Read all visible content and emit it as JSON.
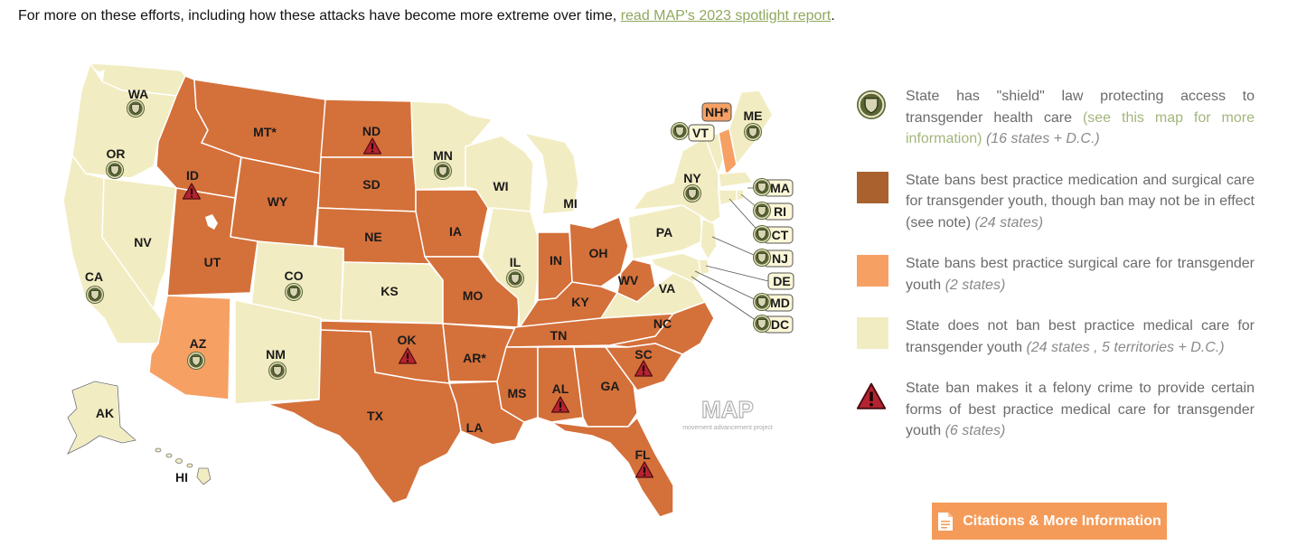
{
  "intro": {
    "text": "For more on these efforts, including how these attacks have become more extreme over time, ",
    "link": "read MAP's 2023 spotlight report",
    "after": "."
  },
  "colors": {
    "full_ban": "#d4703a",
    "surgical_ban": "#f6a064",
    "no_ban": "#f2ecc2",
    "shield": "#5b6634",
    "felony": "#b52330",
    "button": "#f49b5a"
  },
  "map": {
    "states": [
      {
        "abbr": "WA",
        "category": "no_ban",
        "shield": true,
        "felony": false
      },
      {
        "abbr": "OR",
        "category": "no_ban",
        "shield": true,
        "felony": false
      },
      {
        "abbr": "CA",
        "category": "no_ban",
        "shield": true,
        "felony": false
      },
      {
        "abbr": "NV",
        "category": "no_ban",
        "shield": false,
        "felony": false
      },
      {
        "abbr": "ID",
        "category": "full_ban",
        "shield": false,
        "felony": true
      },
      {
        "abbr": "MT*",
        "category": "full_ban",
        "shield": false,
        "felony": false
      },
      {
        "abbr": "WY",
        "category": "full_ban",
        "shield": false,
        "felony": false
      },
      {
        "abbr": "UT",
        "category": "full_ban",
        "shield": false,
        "felony": false
      },
      {
        "abbr": "AZ",
        "category": "surgical_ban",
        "shield": true,
        "felony": false
      },
      {
        "abbr": "CO",
        "category": "no_ban",
        "shield": true,
        "felony": false
      },
      {
        "abbr": "NM",
        "category": "no_ban",
        "shield": true,
        "felony": false
      },
      {
        "abbr": "ND",
        "category": "full_ban",
        "shield": false,
        "felony": true
      },
      {
        "abbr": "SD",
        "category": "full_ban",
        "shield": false,
        "felony": false
      },
      {
        "abbr": "NE",
        "category": "full_ban",
        "shield": false,
        "felony": false
      },
      {
        "abbr": "KS",
        "category": "no_ban",
        "shield": false,
        "felony": false
      },
      {
        "abbr": "OK",
        "category": "full_ban",
        "shield": false,
        "felony": true
      },
      {
        "abbr": "TX",
        "category": "full_ban",
        "shield": false,
        "felony": false
      },
      {
        "abbr": "MN",
        "category": "no_ban",
        "shield": true,
        "felony": false
      },
      {
        "abbr": "IA",
        "category": "full_ban",
        "shield": false,
        "felony": false
      },
      {
        "abbr": "MO",
        "category": "full_ban",
        "shield": false,
        "felony": false
      },
      {
        "abbr": "AR*",
        "category": "full_ban",
        "shield": false,
        "felony": false
      },
      {
        "abbr": "LA",
        "category": "full_ban",
        "shield": false,
        "felony": false
      },
      {
        "abbr": "WI",
        "category": "no_ban",
        "shield": false,
        "felony": false
      },
      {
        "abbr": "IL",
        "category": "no_ban",
        "shield": true,
        "felony": false
      },
      {
        "abbr": "MI",
        "category": "no_ban",
        "shield": false,
        "felony": false
      },
      {
        "abbr": "IN",
        "category": "full_ban",
        "shield": false,
        "felony": false
      },
      {
        "abbr": "OH",
        "category": "full_ban",
        "shield": false,
        "felony": false
      },
      {
        "abbr": "KY",
        "category": "full_ban",
        "shield": false,
        "felony": false
      },
      {
        "abbr": "TN",
        "category": "full_ban",
        "shield": false,
        "felony": false
      },
      {
        "abbr": "MS",
        "category": "full_ban",
        "shield": false,
        "felony": false
      },
      {
        "abbr": "AL",
        "category": "full_ban",
        "shield": false,
        "felony": true
      },
      {
        "abbr": "GA",
        "category": "full_ban",
        "shield": false,
        "felony": false
      },
      {
        "abbr": "FL",
        "category": "full_ban",
        "shield": false,
        "felony": true
      },
      {
        "abbr": "SC",
        "category": "full_ban",
        "shield": false,
        "felony": true
      },
      {
        "abbr": "NC",
        "category": "full_ban",
        "shield": false,
        "felony": false
      },
      {
        "abbr": "WV",
        "category": "full_ban",
        "shield": false,
        "felony": false
      },
      {
        "abbr": "VA",
        "category": "no_ban",
        "shield": false,
        "felony": false
      },
      {
        "abbr": "PA",
        "category": "no_ban",
        "shield": false,
        "felony": false
      },
      {
        "abbr": "NY",
        "category": "no_ban",
        "shield": true,
        "felony": false
      },
      {
        "abbr": "VT",
        "category": "no_ban",
        "shield": true,
        "felony": false
      },
      {
        "abbr": "NH*",
        "category": "surgical_ban",
        "shield": false,
        "felony": false
      },
      {
        "abbr": "ME",
        "category": "no_ban",
        "shield": true,
        "felony": false
      },
      {
        "abbr": "MA",
        "category": "no_ban",
        "shield": true,
        "felony": false
      },
      {
        "abbr": "RI",
        "category": "no_ban",
        "shield": true,
        "felony": false
      },
      {
        "abbr": "CT",
        "category": "no_ban",
        "shield": true,
        "felony": false
      },
      {
        "abbr": "NJ",
        "category": "no_ban",
        "shield": true,
        "felony": false
      },
      {
        "abbr": "DE",
        "category": "no_ban",
        "shield": false,
        "felony": false
      },
      {
        "abbr": "MD",
        "category": "no_ban",
        "shield": true,
        "felony": false
      },
      {
        "abbr": "DC",
        "category": "no_ban",
        "shield": true,
        "felony": false
      },
      {
        "abbr": "AK",
        "category": "no_ban",
        "shield": false,
        "felony": false
      },
      {
        "abbr": "HI",
        "category": "no_ban",
        "shield": false,
        "felony": false
      }
    ],
    "watermark": {
      "logo": "MAP",
      "tagline": "movement advancement project"
    }
  },
  "legend": [
    {
      "icon": "shield-icon",
      "text": "State has \"shield\" law protecting access to transgender health care",
      "link": "(see this map for more information)",
      "count": "(16 states + D.C.)"
    },
    {
      "icon": "full-ban-swatch",
      "text": "State bans best practice medication and surgical care for transgender youth, though ban may not be in effect (see note)",
      "link": "",
      "count": "(24 states)"
    },
    {
      "icon": "surgical-ban-swatch",
      "text": "State bans best practice surgical care for transgender youth",
      "link": "",
      "count": "(2 states)"
    },
    {
      "icon": "no-ban-swatch",
      "text": "State does not ban best practice medical care for transgender youth",
      "link": "",
      "count": "(24 states , 5 territories + D.C.)"
    },
    {
      "icon": "felony-icon",
      "text": "State ban makes it a felony crime to provide certain forms of best practice medical care for transgender youth",
      "link": "",
      "count": "(6 states)"
    }
  ],
  "button": {
    "label": "Citations & More Information",
    "icon": "document-icon"
  }
}
